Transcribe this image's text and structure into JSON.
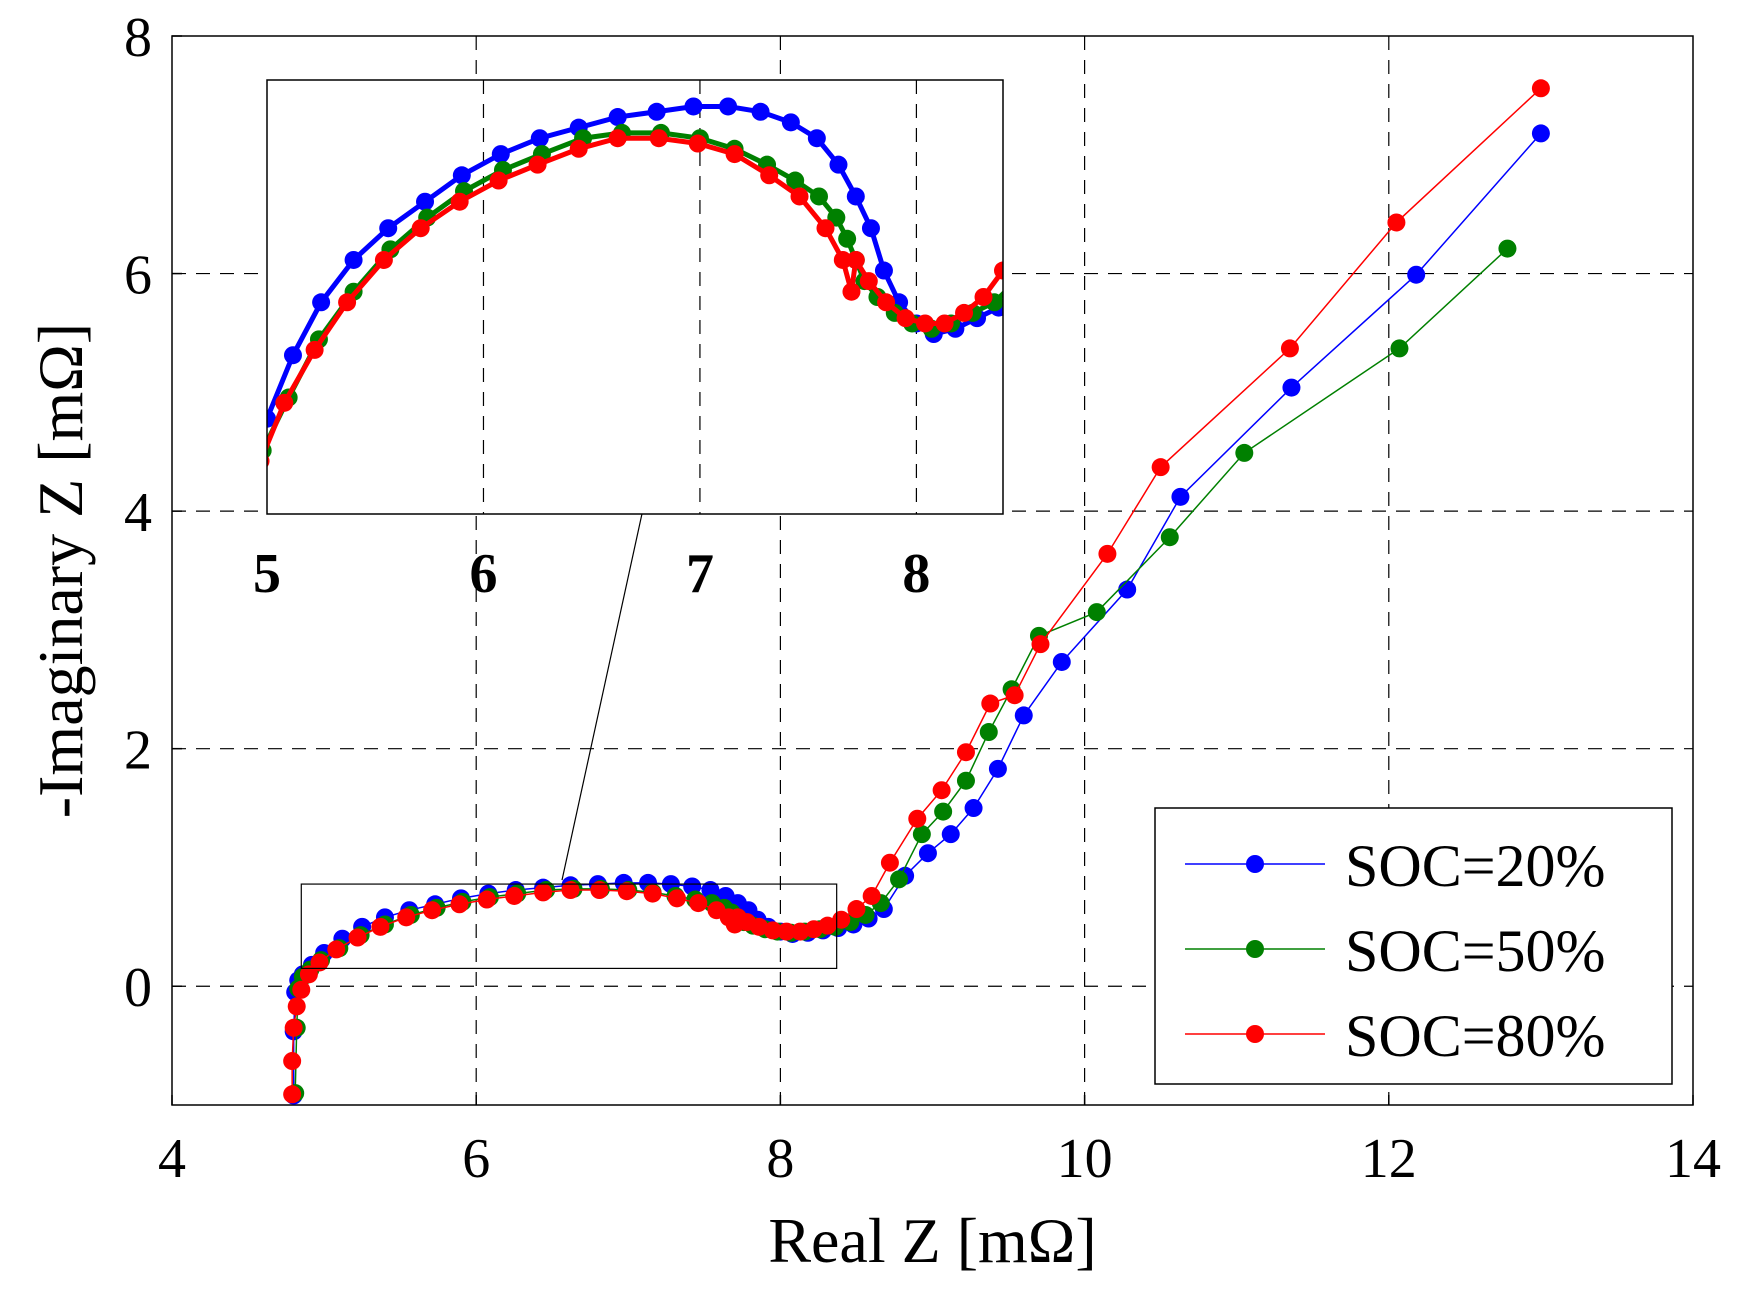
{
  "chart_data": {
    "type": "line",
    "xlabel": "Real Z [mΩ]",
    "ylabel": "-Imaginary Z [mΩ]",
    "xlim": [
      4,
      14
    ],
    "ylim": [
      -1,
      8
    ],
    "xticks": [
      4,
      6,
      8,
      10,
      12,
      14
    ],
    "yticks": [
      0,
      2,
      4,
      6,
      8
    ],
    "grid": true,
    "legend_position": "bottom-right",
    "series": [
      {
        "name": "SOC=20%",
        "color": "#0000ff",
        "x": [
          4.8,
          4.8,
          4.81,
          4.83,
          4.86,
          4.92,
          5.0,
          5.12,
          5.25,
          5.4,
          5.56,
          5.73,
          5.9,
          6.08,
          6.26,
          6.44,
          6.62,
          6.8,
          6.97,
          7.13,
          7.28,
          7.42,
          7.54,
          7.64,
          7.72,
          7.79,
          7.85,
          7.92,
          8.0,
          8.08,
          8.18,
          8.28,
          8.38,
          8.48,
          8.58,
          8.68,
          8.82,
          8.97,
          9.12,
          9.27,
          9.43,
          9.6,
          9.85,
          10.28,
          10.63,
          11.36,
          12.18,
          13.0
        ],
        "y": [
          -0.92,
          -0.38,
          -0.05,
          0.05,
          0.1,
          0.18,
          0.28,
          0.4,
          0.5,
          0.58,
          0.64,
          0.69,
          0.74,
          0.78,
          0.81,
          0.83,
          0.85,
          0.86,
          0.87,
          0.87,
          0.86,
          0.84,
          0.81,
          0.76,
          0.7,
          0.64,
          0.56,
          0.5,
          0.46,
          0.44,
          0.45,
          0.47,
          0.49,
          0.52,
          0.57,
          0.65,
          0.93,
          1.12,
          1.28,
          1.5,
          1.83,
          2.28,
          2.73,
          3.34,
          4.12,
          5.04,
          5.99,
          7.18
        ]
      },
      {
        "name": "SOC=50%",
        "color": "#008000",
        "x": [
          4.81,
          4.82,
          4.83,
          4.86,
          4.91,
          4.98,
          5.1,
          5.24,
          5.4,
          5.57,
          5.74,
          5.91,
          6.09,
          6.27,
          6.46,
          6.64,
          6.82,
          7.0,
          7.16,
          7.31,
          7.44,
          7.55,
          7.63,
          7.68,
          7.72,
          7.76,
          7.82,
          7.9,
          7.98,
          8.07,
          8.16,
          8.26,
          8.36,
          8.46,
          8.56,
          8.66,
          8.78,
          8.93,
          9.07,
          9.22,
          9.37,
          9.52,
          9.7,
          10.08,
          10.56,
          11.05,
          12.07,
          12.78
        ],
        "y": [
          -0.9,
          -0.35,
          -0.02,
          0.08,
          0.14,
          0.22,
          0.32,
          0.43,
          0.52,
          0.6,
          0.66,
          0.71,
          0.75,
          0.78,
          0.81,
          0.82,
          0.82,
          0.81,
          0.79,
          0.76,
          0.73,
          0.7,
          0.66,
          0.62,
          0.58,
          0.54,
          0.51,
          0.48,
          0.46,
          0.45,
          0.46,
          0.48,
          0.5,
          0.54,
          0.6,
          0.7,
          0.9,
          1.28,
          1.47,
          1.73,
          2.14,
          2.5,
          2.95,
          3.15,
          3.78,
          4.49,
          5.37,
          6.21
        ]
      },
      {
        "name": "SOC=80%",
        "color": "#ff0000",
        "x": [
          4.79,
          4.79,
          4.8,
          4.82,
          4.85,
          4.9,
          4.97,
          5.08,
          5.22,
          5.37,
          5.54,
          5.71,
          5.89,
          6.07,
          6.25,
          6.44,
          6.62,
          6.81,
          6.99,
          7.16,
          7.32,
          7.46,
          7.58,
          7.66,
          7.7,
          7.72,
          7.78,
          7.86,
          7.95,
          8.04,
          8.13,
          8.22,
          8.31,
          8.4,
          8.5,
          8.6,
          8.72,
          8.9,
          9.06,
          9.22,
          9.38,
          9.54,
          9.71,
          10.15,
          10.5,
          11.35,
          12.05,
          13.0
        ],
        "y": [
          -0.91,
          -0.63,
          -0.35,
          -0.17,
          -0.03,
          0.1,
          0.2,
          0.31,
          0.41,
          0.5,
          0.58,
          0.64,
          0.69,
          0.73,
          0.76,
          0.79,
          0.81,
          0.81,
          0.8,
          0.78,
          0.74,
          0.7,
          0.64,
          0.58,
          0.52,
          0.58,
          0.54,
          0.5,
          0.47,
          0.46,
          0.46,
          0.48,
          0.51,
          0.56,
          0.65,
          0.76,
          1.04,
          1.41,
          1.65,
          1.97,
          2.38,
          2.45,
          2.88,
          3.64,
          4.37,
          5.37,
          6.43,
          7.56
        ]
      }
    ],
    "inset": {
      "xlim": [
        5,
        8.4
      ],
      "ylim": [
        0.1,
        0.92
      ],
      "xticks": [
        5,
        6,
        7,
        8
      ],
      "zoom_region": {
        "x": [
          4.85,
          8.37
        ],
        "y": [
          0.15,
          0.86
        ]
      }
    }
  }
}
